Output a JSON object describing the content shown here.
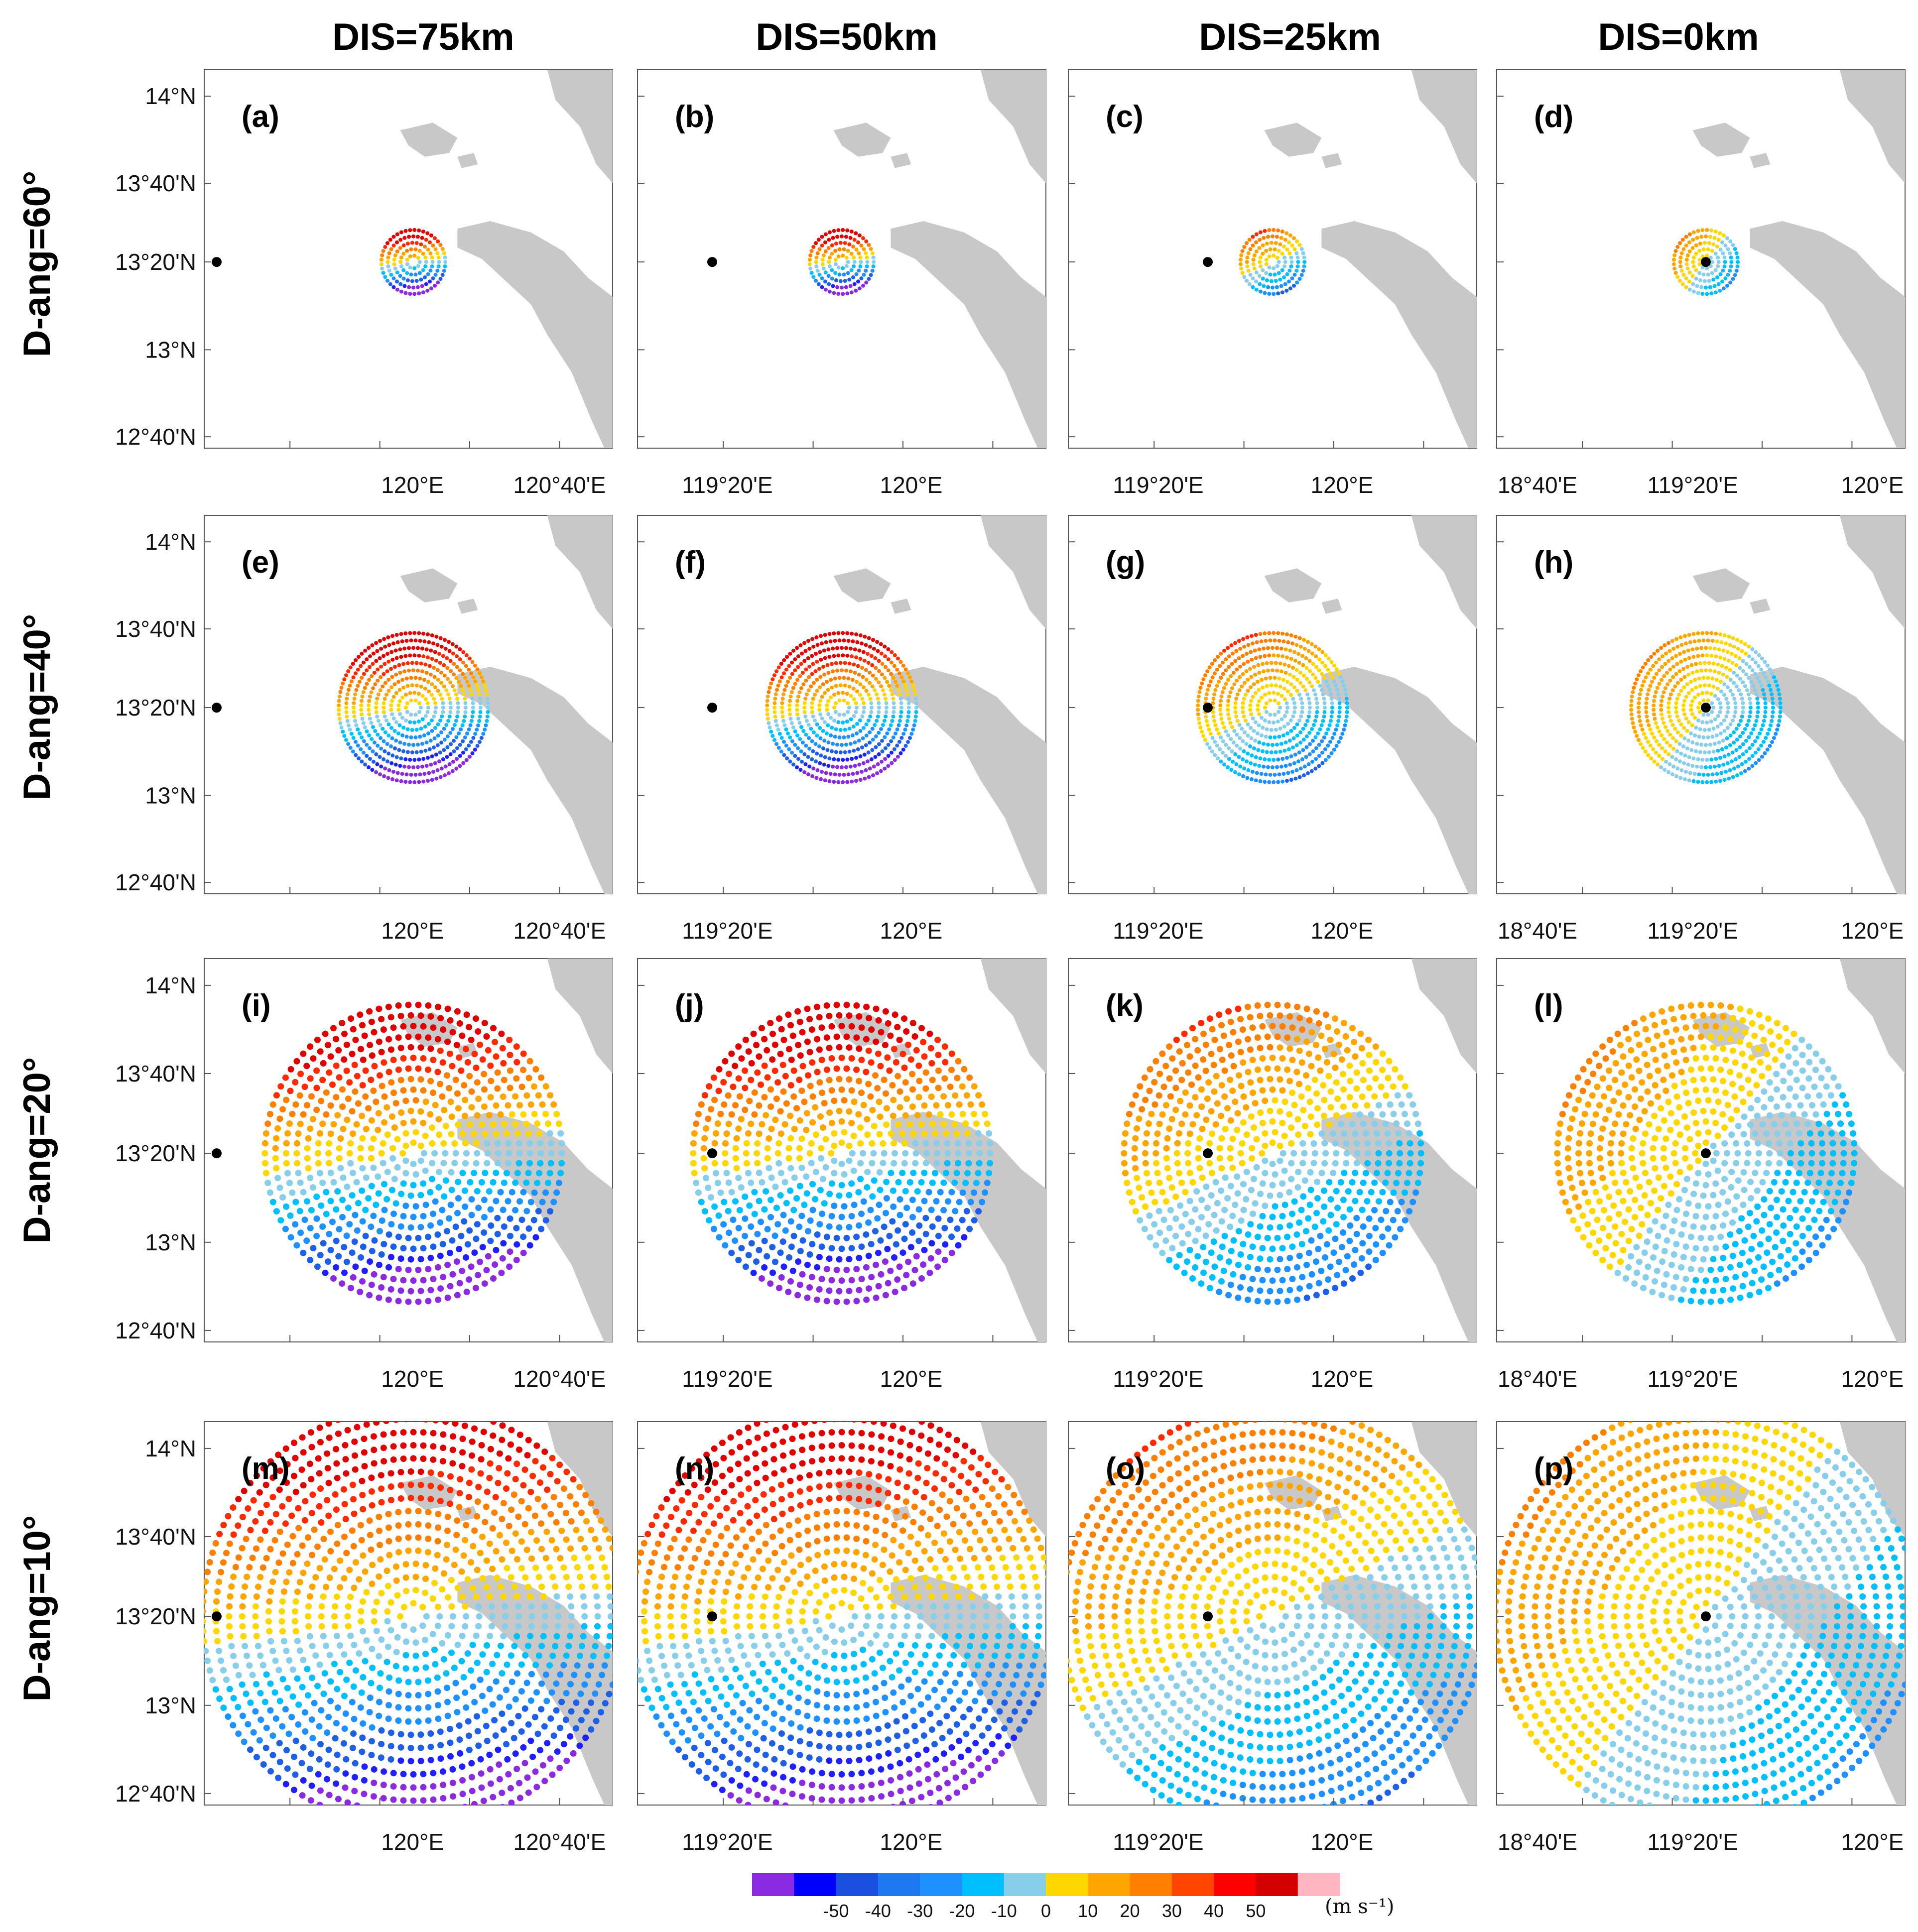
{
  "column_headers": [
    "DIS=75km",
    "DIS=50km",
    "DIS=25km",
    "DIS=0km"
  ],
  "row_labels": [
    "D-ang=60°",
    "D-ang=40°",
    "D-ang=20°",
    "D-ang=10°"
  ],
  "panel_labels": [
    "(a)",
    "(b)",
    "(c)",
    "(d)",
    "(e)",
    "(f)",
    "(g)",
    "(h)",
    "(i)",
    "(j)",
    "(k)",
    "(l)",
    "(m)",
    "(n)",
    "(o)",
    "(p)"
  ],
  "y_ticks": [
    "14°N",
    "13°40'N",
    "13°20'N",
    "13°N",
    "12°40'N"
  ],
  "x_ticks_by_column": [
    [
      "120°E",
      "120°40'E"
    ],
    [
      "119°20'E",
      "120°E"
    ],
    [
      "119°20'E",
      "120°E"
    ],
    [
      "18°40'E",
      "119°20'E",
      "120°E"
    ]
  ],
  "colorbar": {
    "tick_labels": [
      "-50",
      "-40",
      "-30",
      "-20",
      "-10",
      "0",
      "10",
      "20",
      "30",
      "40",
      "50"
    ],
    "unit_label": "(m s⁻¹)",
    "colors": [
      "#8a2be2",
      "#0000ff",
      "#1a4fe0",
      "#1e78f0",
      "#1e90ff",
      "#00bfff",
      "#87ceeb",
      "#ffd700",
      "#ffa500",
      "#ff7f00",
      "#ff4500",
      "#ff0000",
      "#d40000",
      "#ffb6c1"
    ]
  },
  "chart_data": {
    "type": "scatter",
    "description": "Radial scan patterns of radial velocity (m s-1); radar site shown as black dot; radius grows as D-ang decreases",
    "rows": [
      "D-ang=60°",
      "D-ang=40°",
      "D-ang=20°",
      "D-ang=10°"
    ],
    "columns": [
      "DIS=75km",
      "DIS=50km",
      "DIS=25km",
      "DIS=0km"
    ],
    "scan_radius_deg_lat_by_row": [
      0.12,
      0.28,
      0.55,
      0.78
    ],
    "colorbar_range": [
      -50,
      50
    ],
    "unit": "m s-1",
    "ylim_deg": [
      12.64,
      14.06
    ]
  }
}
